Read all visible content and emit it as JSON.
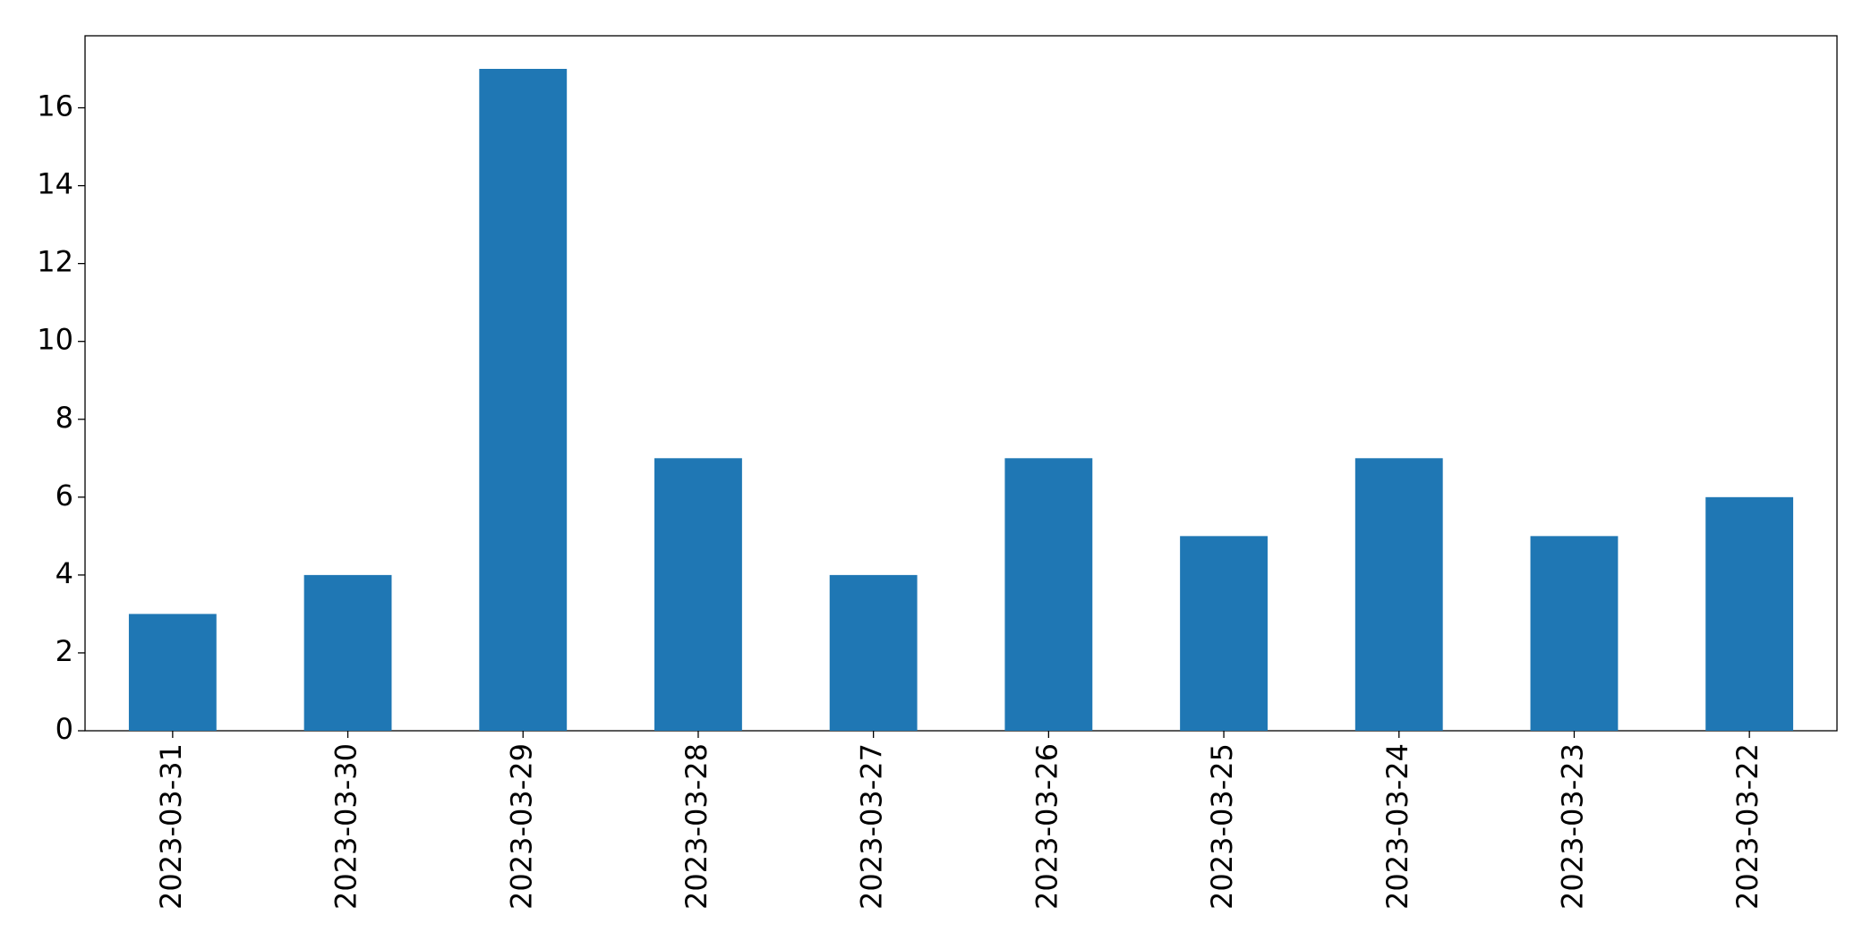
{
  "chart_data": {
    "type": "bar",
    "categories": [
      "2023-03-31",
      "2023-03-30",
      "2023-03-29",
      "2023-03-28",
      "2023-03-27",
      "2023-03-26",
      "2023-03-25",
      "2023-03-24",
      "2023-03-23",
      "2023-03-22"
    ],
    "values": [
      3,
      4,
      17,
      7,
      4,
      7,
      5,
      7,
      5,
      6
    ],
    "color": "#1f77b4",
    "ylim": [
      0,
      17.85
    ],
    "yticks": [
      0,
      2,
      4,
      6,
      8,
      10,
      12,
      14,
      16
    ],
    "grid": false
  }
}
